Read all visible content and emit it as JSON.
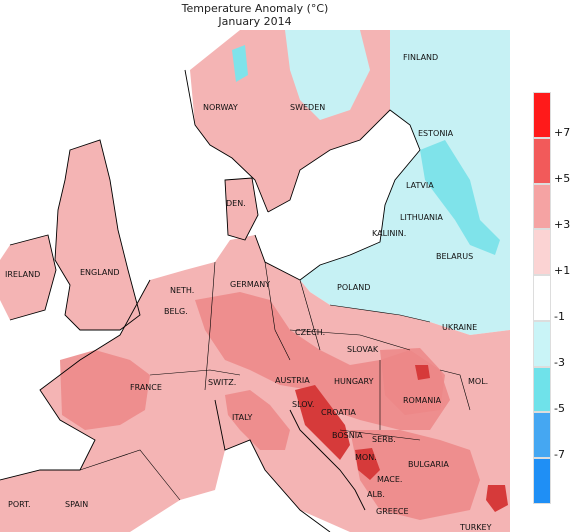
{
  "title": "Temperature Anomaly (°C)",
  "subtitle": "January 2014",
  "colors": {
    "land_default": "#f7c9c9",
    "warm1": "#f4b4b4",
    "warm2": "#ec8787",
    "warm3": "#d63a3a",
    "cool1": "#c6f1f4",
    "cool2": "#7fe3ea",
    "cool3": "#4dc6e6",
    "sea": "#ffffff",
    "coast": "#000000"
  },
  "colorbar": {
    "ticks": [
      "+7",
      "+5",
      "+3",
      "+1",
      "-1",
      "-3",
      "-5",
      "-7"
    ],
    "bins": [
      {
        "color": "#ff1a1a"
      },
      {
        "color": "#f25a5a"
      },
      {
        "color": "#f5a3a3"
      },
      {
        "color": "#fbd3d3"
      },
      {
        "color": "#ffffff"
      },
      {
        "color": "#c9f4f7"
      },
      {
        "color": "#6fe2ea"
      },
      {
        "color": "#45a7f2"
      },
      {
        "color": "#1f8ff5"
      }
    ]
  },
  "countries": [
    {
      "name": "FINLAND"
    },
    {
      "name": "NORWAY"
    },
    {
      "name": "SWEDEN"
    },
    {
      "name": "ESTONIA"
    },
    {
      "name": "LATVIA"
    },
    {
      "name": "LITHUANIA"
    },
    {
      "name": "KALININ."
    },
    {
      "name": "BELARUS"
    },
    {
      "name": "DEN."
    },
    {
      "name": "IRELAND"
    },
    {
      "name": "ENGLAND"
    },
    {
      "name": "NETH."
    },
    {
      "name": "GERMANY"
    },
    {
      "name": "POLAND"
    },
    {
      "name": "BELG."
    },
    {
      "name": "CZECH."
    },
    {
      "name": "SLOVAK"
    },
    {
      "name": "UKRAINE"
    },
    {
      "name": "FRANCE"
    },
    {
      "name": "SWITZ."
    },
    {
      "name": "AUSTRIA"
    },
    {
      "name": "HUNGARY"
    },
    {
      "name": "SLOV."
    },
    {
      "name": "CROATIA"
    },
    {
      "name": "ROMANIA"
    },
    {
      "name": "ITALY"
    },
    {
      "name": "BOSNIA"
    },
    {
      "name": "SERB."
    },
    {
      "name": "MON."
    },
    {
      "name": "BULGARIA"
    },
    {
      "name": "MACE."
    },
    {
      "name": "ALB."
    },
    {
      "name": "GREECE"
    },
    {
      "name": "PORT."
    },
    {
      "name": "SPAIN"
    },
    {
      "name": "TURKEY"
    },
    {
      "name": "MOL."
    }
  ]
}
